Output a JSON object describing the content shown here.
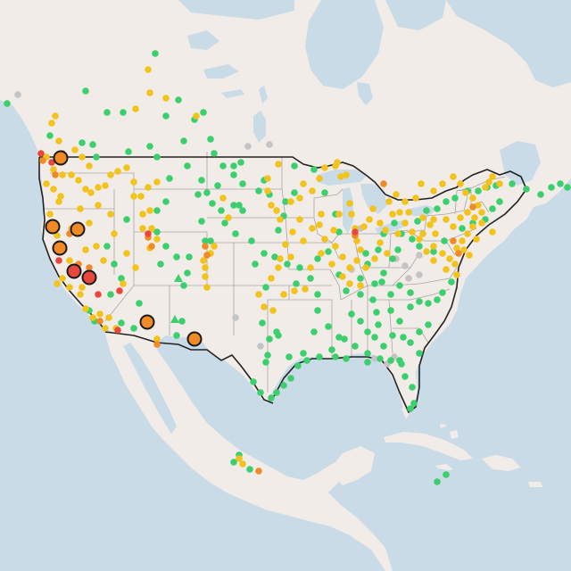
{
  "map": {
    "colors": {
      "water": "#c9dbe6",
      "land": "#f1ece8",
      "land_alt": "#ece7e3",
      "state_border": "#a9a5a3",
      "country_border": "#222222",
      "good": "#3ccf6e",
      "moderate": "#f2c31c",
      "usg": "#f08a24",
      "unhealthy": "#e8473d",
      "no_data": "#c4c4c4",
      "outline": "#1a1a1a"
    },
    "legend_categories": [
      "good",
      "moderate",
      "usg",
      "unhealthy",
      "no_data"
    ]
  }
}
